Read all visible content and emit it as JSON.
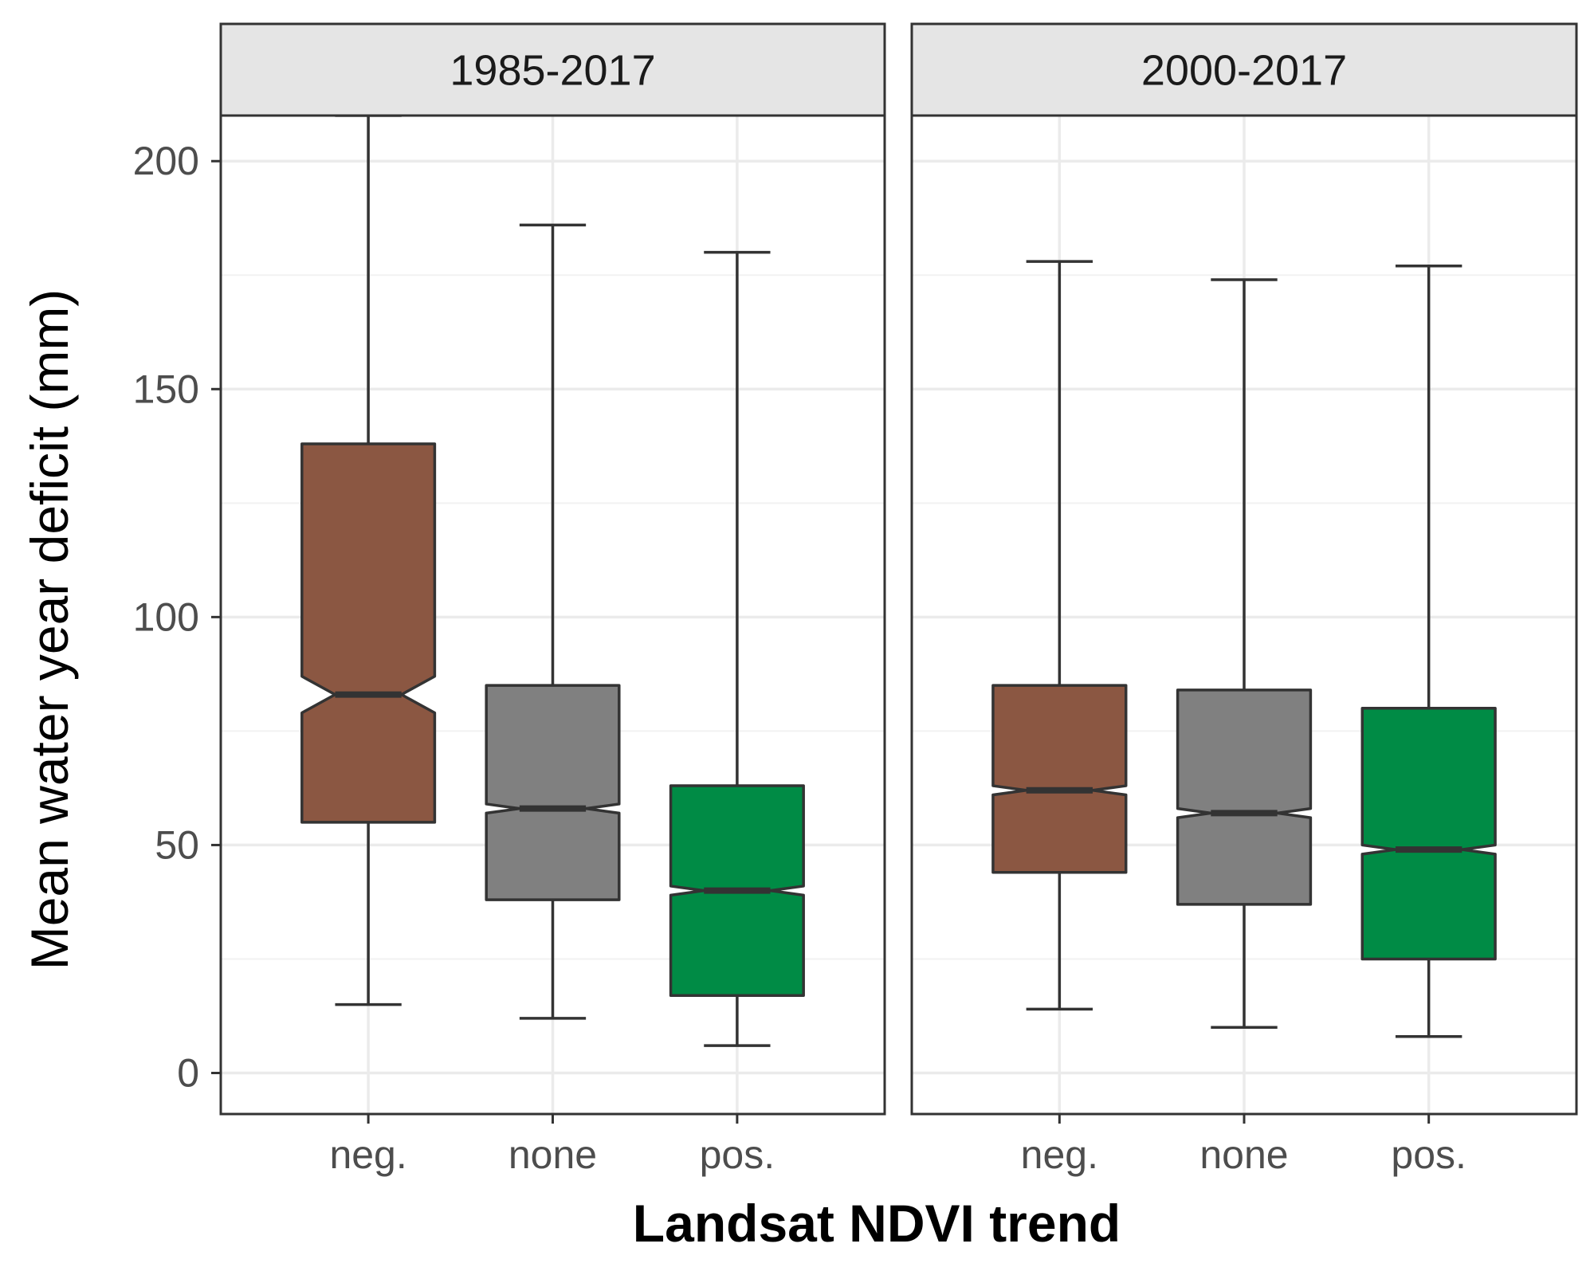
{
  "chart_data": {
    "type": "boxplot",
    "notched": true,
    "xlabel": "Landsat NDVI trend",
    "ylabel": "Mean water year deficit (mm)",
    "categories": [
      "neg.",
      "none",
      "pos."
    ],
    "ylim": [
      -9,
      210
    ],
    "y_ticks": [
      0,
      50,
      100,
      150,
      200
    ],
    "grid": true,
    "colors": {
      "neg.": "#8b5742",
      "none": "#808080",
      "pos.": "#008b45"
    },
    "panels": [
      {
        "label": "1985-2017",
        "boxes": [
          {
            "category": "neg.",
            "whisker_low": 15,
            "q1": 55,
            "median": 83,
            "q3": 138,
            "whisker_high": 210,
            "notch_low": 79,
            "notch_high": 87
          },
          {
            "category": "none",
            "whisker_low": 12,
            "q1": 38,
            "median": 58,
            "q3": 85,
            "whisker_high": 186,
            "notch_low": 57,
            "notch_high": 59
          },
          {
            "category": "pos.",
            "whisker_low": 6,
            "q1": 17,
            "median": 40,
            "q3": 63,
            "whisker_high": 180,
            "notch_low": 39,
            "notch_high": 41
          }
        ]
      },
      {
        "label": "2000-2017",
        "boxes": [
          {
            "category": "neg.",
            "whisker_low": 14,
            "q1": 44,
            "median": 62,
            "q3": 85,
            "whisker_high": 178,
            "notch_low": 61,
            "notch_high": 63
          },
          {
            "category": "none",
            "whisker_low": 10,
            "q1": 37,
            "median": 57,
            "q3": 84,
            "whisker_high": 174,
            "notch_low": 56,
            "notch_high": 58
          },
          {
            "category": "pos.",
            "whisker_low": 8,
            "q1": 25,
            "median": 49,
            "q3": 80,
            "whisker_high": 177,
            "notch_low": 48,
            "notch_high": 50
          }
        ]
      }
    ]
  }
}
